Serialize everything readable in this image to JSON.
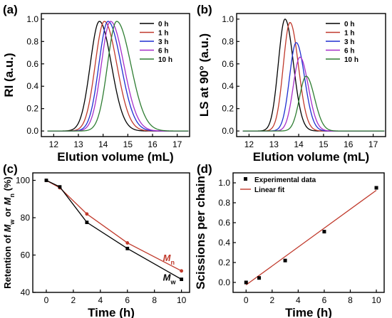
{
  "chart_data": [
    {
      "panel": "(a)",
      "type": "line",
      "xlabel": "Elution volume (mL)",
      "ylabel": "RI (a.u.)",
      "xlim": [
        11.5,
        17.5
      ],
      "ylim": [
        -0.05,
        1.05
      ],
      "xticks": [
        12,
        13,
        14,
        15,
        16,
        17
      ],
      "yticks": [
        0.0,
        0.2,
        0.4,
        0.6,
        0.8,
        1.0
      ],
      "ytick_labels": [
        "0.0",
        "0.2",
        "0.4",
        "0.6",
        "0.8",
        "1.0"
      ],
      "legend": "top-right",
      "series": [
        {
          "name": "0 h",
          "color": "#000000",
          "peak_x": 13.85,
          "peak_y": 0.98,
          "left_width": 0.55,
          "right_width": 0.72,
          "tail": 0.0
        },
        {
          "name": "1 h",
          "color": "#c0392b",
          "peak_x": 14.05,
          "peak_y": 0.98,
          "left_width": 0.55,
          "right_width": 0.75,
          "tail": 0.0
        },
        {
          "name": "3 h",
          "color": "#1f2fd1",
          "peak_x": 14.2,
          "peak_y": 0.98,
          "left_width": 0.55,
          "right_width": 0.78,
          "tail": 0.0
        },
        {
          "name": "6 h",
          "color": "#a52ec9",
          "peak_x": 14.3,
          "peak_y": 0.98,
          "left_width": 0.55,
          "right_width": 0.8,
          "tail": 0.0
        },
        {
          "name": "10 h",
          "color": "#2e7d32",
          "peak_x": 14.55,
          "peak_y": 0.98,
          "left_width": 0.55,
          "right_width": 0.85,
          "tail": 0.0
        }
      ]
    },
    {
      "panel": "(b)",
      "type": "line",
      "xlabel": "Elution volume (mL)",
      "ylabel": "LS at 90° (a.u.)",
      "xlim": [
        11.5,
        17.5
      ],
      "ylim": [
        -0.05,
        1.05
      ],
      "xticks": [
        12,
        13,
        14,
        15,
        16,
        17
      ],
      "yticks": [
        0.0,
        0.2,
        0.4,
        0.6,
        0.8,
        1.0
      ],
      "ytick_labels": [
        "0.0",
        "0.2",
        "0.4",
        "0.6",
        "0.8",
        "1.0"
      ],
      "legend": "top-right",
      "series": [
        {
          "name": "0 h",
          "color": "#000000",
          "peak_x": 13.45,
          "peak_y": 1.0,
          "left_width": 0.4,
          "right_width": 0.5,
          "tail": 0.0
        },
        {
          "name": "1 h",
          "color": "#c0392b",
          "peak_x": 13.65,
          "peak_y": 0.97,
          "left_width": 0.4,
          "right_width": 0.5,
          "tail": 0.0
        },
        {
          "name": "3 h",
          "color": "#1f2fd1",
          "peak_x": 13.9,
          "peak_y": 0.79,
          "left_width": 0.4,
          "right_width": 0.5,
          "tail": 0.0
        },
        {
          "name": "6 h",
          "color": "#a52ec9",
          "peak_x": 14.05,
          "peak_y": 0.66,
          "left_width": 0.4,
          "right_width": 0.5,
          "tail": 0.0
        },
        {
          "name": "10 h",
          "color": "#2e7d32",
          "peak_x": 14.3,
          "peak_y": 0.49,
          "left_width": 0.4,
          "right_width": 0.5,
          "tail": 0.0
        }
      ]
    },
    {
      "panel": "(c)",
      "type": "line",
      "xlabel": "Time (h)",
      "ylabel_parts": [
        "Retention of ",
        "M",
        "w",
        " or ",
        "M",
        "n",
        " (%)"
      ],
      "xlim": [
        -1,
        10.6
      ],
      "ylim": [
        40,
        104
      ],
      "xticks": [
        0,
        2,
        4,
        6,
        8,
        10
      ],
      "yticks": [
        40,
        60,
        80,
        100
      ],
      "x": [
        0,
        1,
        3,
        6,
        10
      ],
      "series": [
        {
          "name": "M",
          "subscript": "n",
          "color": "#c0392b",
          "label_color": "#c0392b",
          "values": [
            100,
            96,
            82,
            66.5,
            51.5
          ]
        },
        {
          "name": "M",
          "subscript": "w",
          "color": "#000000",
          "label_color": "#000000",
          "values": [
            100,
            96.5,
            77.5,
            63.5,
            47
          ]
        }
      ]
    },
    {
      "panel": "(d)",
      "type": "scatter",
      "xlabel": "Time (h)",
      "ylabel": "Scissions per chain",
      "xlim": [
        -1,
        10.6
      ],
      "ylim": [
        -0.1,
        1.1
      ],
      "xticks": [
        0,
        2,
        4,
        6,
        8,
        10
      ],
      "yticks": [
        0.0,
        0.2,
        0.4,
        0.6,
        0.8,
        1.0
      ],
      "ytick_labels": [
        "0.0",
        "0.2",
        "0.4",
        "0.6",
        "0.8",
        "1.0"
      ],
      "legend": "top-left",
      "legend_entries": [
        "Experimental data",
        "Linear fit"
      ],
      "points": {
        "x": [
          0,
          1,
          3,
          6,
          10
        ],
        "y": [
          0.0,
          0.045,
          0.22,
          0.51,
          0.95
        ],
        "color": "#000000"
      },
      "fit": {
        "slope": 0.095,
        "intercept": -0.025,
        "x_range": [
          0,
          10
        ],
        "color": "#c0392b"
      }
    }
  ]
}
